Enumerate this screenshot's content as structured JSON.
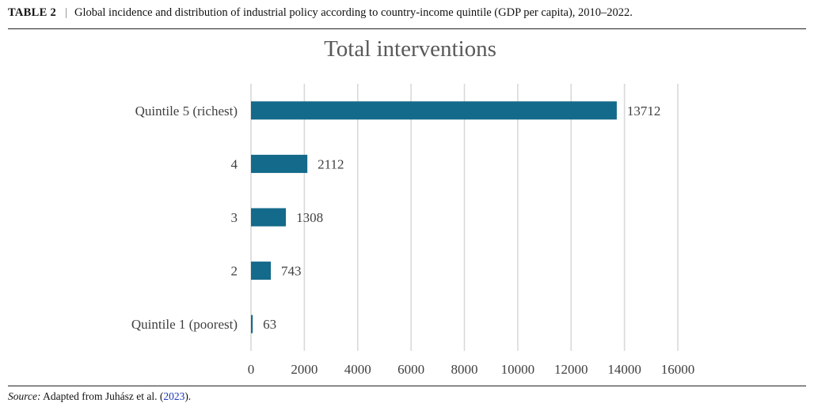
{
  "caption": {
    "label": "TABLE 2",
    "separator": "|",
    "text": "Global incidence and distribution of industrial policy according to country-income quintile (GDP per capita), 2010–2022."
  },
  "footer": {
    "source_label": "Source:",
    "source_text": " Adapted from Juhász et al. (",
    "source_year": "2023",
    "source_end": ")."
  },
  "colors": {
    "bar": "#146a8a",
    "grid": "#d9d9d9",
    "text": "#404040"
  },
  "chart_data": {
    "type": "bar",
    "orientation": "horizontal",
    "title": "Total interventions",
    "xlabel": "",
    "ylabel": "",
    "categories": [
      "Quintile 5 (richest)",
      "4",
      "3",
      "2",
      "Quintile 1 (poorest)"
    ],
    "values": [
      13712,
      2112,
      1308,
      743,
      63
    ],
    "data_labels": [
      "13712",
      "2112",
      "1308",
      "743",
      "63"
    ],
    "xlim": [
      0,
      16000
    ],
    "xticks": [
      0,
      2000,
      4000,
      6000,
      8000,
      10000,
      12000,
      14000,
      16000
    ],
    "xtick_labels": [
      "0",
      "2000",
      "4000",
      "6000",
      "8000",
      "10000",
      "12000",
      "14000",
      "16000"
    ],
    "grid": true,
    "legend": "none"
  }
}
